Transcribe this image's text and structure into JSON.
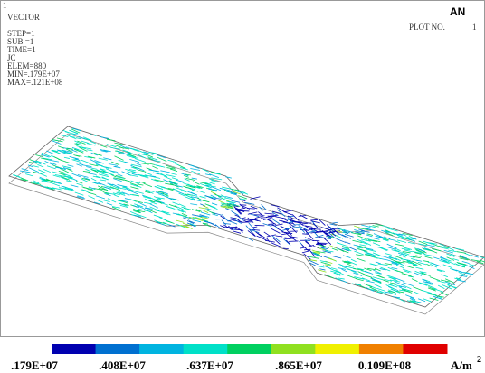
{
  "header": {
    "window_number": "1",
    "plot_type": "VECTOR",
    "info": [
      "STEP=1",
      "SUB =1",
      "TIME=1",
      "JC",
      "ELEM=880",
      "MIN=.179E+07",
      "MAX=.121E+08"
    ],
    "logo": "AN",
    "plot_label": "PLOT NO.",
    "plot_number": "1"
  },
  "legend": {
    "colors": [
      "#0000b0",
      "#0070d0",
      "#00b4e0",
      "#00e0c8",
      "#00d060",
      "#90e020",
      "#f0f000",
      "#f08000",
      "#e00000"
    ],
    "labels": [
      ".179E+07",
      ".408E+07",
      ".637E+07",
      ".865E+07",
      "0.109E+08"
    ],
    "unit": "A/m",
    "unit_power": "2"
  }
}
